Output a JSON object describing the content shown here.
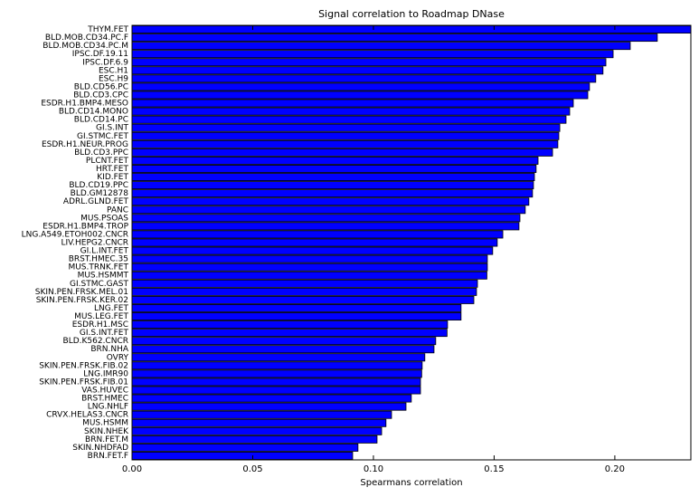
{
  "chart_data": {
    "type": "barh",
    "title": "Signal correlation to Roadmap DNase",
    "x_label": "Spearmans correlation",
    "categories": [
      "THYM.FET",
      "BLD.MOB.CD34.PC.F",
      "BLD.MOB.CD34.PC.M",
      "IPSC.DF.19.11",
      "IPSC.DF.6.9",
      "ESC.H1",
      "ESC.H9",
      "BLD.CD56.PC",
      "BLD.CD3.CPC",
      "ESDR.H1.BMP4.MESO",
      "BLD.CD14.MONO",
      "BLD.CD14.PC",
      "GI.S.INT",
      "GI.STMC.FET",
      "ESDR.H1.NEUR.PROG",
      "BLD.CD3.PPC",
      "PLCNT.FET",
      "HRT.FET",
      "KID.FET",
      "BLD.CD19.PPC",
      "BLD.GM12878",
      "ADRL.GLND.FET",
      "PANC",
      "MUS.PSOAS",
      "ESDR.H1.BMP4.TROP",
      "LNG.A549.ETOH002.CNCR",
      "LIV.HEPG2.CNCR",
      "GI.L.INT.FET",
      "BRST.HMEC.35",
      "MUS.TRNK.FET",
      "MUS.HSMMT",
      "GI.STMC.GAST",
      "SKIN.PEN.FRSK.MEL.01",
      "SKIN.PEN.FRSK.KER.02",
      "LNG.FET",
      "MUS.LEG.FET",
      "ESDR.H1.MSC",
      "GI.S.INT.FET",
      "BLD.K562.CNCR",
      "BRN.NHA",
      "OVRY",
      "SKIN.PEN.FRSK.FIB.02",
      "LNG.IMR90",
      "SKIN.PEN.FRSK.FIB.01",
      "VAS.HUVEC",
      "BRST.HMEC",
      "LNG.NHLF",
      "CRVX.HELAS3.CNCR",
      "MUS.HSMM",
      "SKIN.NHEK",
      "BRN.FET.M",
      "SKIN.NHDFAD",
      "BRN.FET.F"
    ],
    "values": [
      0.2315,
      0.2176,
      0.2064,
      0.1993,
      0.1963,
      0.1951,
      0.1921,
      0.1895,
      0.1888,
      0.1828,
      0.1813,
      0.1798,
      0.1772,
      0.1768,
      0.1764,
      0.1742,
      0.1682,
      0.1674,
      0.1667,
      0.1663,
      0.1659,
      0.1644,
      0.1629,
      0.1607,
      0.1603,
      0.1536,
      0.1513,
      0.1494,
      0.1472,
      0.1472,
      0.147,
      0.1431,
      0.1427,
      0.1416,
      0.1363,
      0.1363,
      0.1307,
      0.1305,
      0.1258,
      0.1251,
      0.1213,
      0.1202,
      0.12,
      0.1195,
      0.1195,
      0.1157,
      0.1135,
      0.1075,
      0.1052,
      0.1034,
      0.1015,
      0.0936,
      0.0914
    ],
    "color": "#0000ff",
    "xlim": [
      0,
      0.2315
    ],
    "xticks": [
      {
        "value": 0,
        "label": "0.00"
      },
      0.05,
      {
        "value": 0.1,
        "label": "0.10"
      },
      0.15,
      {
        "value": 0.2,
        "label": "0.20"
      }
    ]
  }
}
